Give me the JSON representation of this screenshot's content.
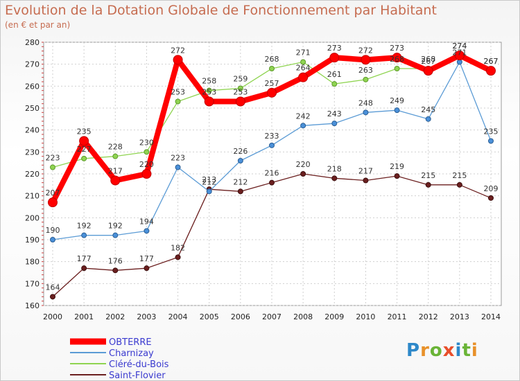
{
  "title": "Evolution de la Dotation Globale de Fonctionnement par Habitant",
  "subtitle": "(en € et par an)",
  "logo": {
    "text": "Proxiti",
    "colors": [
      "#2e88c9",
      "#e8912a",
      "#6ab437",
      "#e84e2a",
      "#2e88c9",
      "#6ab437",
      "#e8912a"
    ]
  },
  "chart_data": {
    "type": "line",
    "x": [
      "2000",
      "2001",
      "2002",
      "2003",
      "2004",
      "2005",
      "2006",
      "2007",
      "2008",
      "2009",
      "2010",
      "2011",
      "2012",
      "2013",
      "2014"
    ],
    "ylim": [
      160,
      280
    ],
    "yticks": [
      "160",
      "170",
      "180",
      "190",
      "200",
      "210",
      "220",
      "230",
      "240",
      "250",
      "260",
      "270",
      "280"
    ],
    "grid": true,
    "legend_position": "bottom-left",
    "series": [
      {
        "name": "OBTERRE",
        "color": "#ff0000",
        "values": [
          207,
          235,
          217,
          220,
          272,
          253,
          253,
          257,
          264,
          273,
          272,
          273,
          267,
          274,
          267
        ],
        "labels": [
          "207",
          "235",
          "217",
          "220",
          "272",
          "253",
          "253",
          "257",
          "264",
          "273",
          "272",
          "273",
          "267",
          "274",
          "267"
        ]
      },
      {
        "name": "Charnizay",
        "color": "#5b9bd5",
        "values": [
          190,
          192,
          192,
          194,
          223,
          212,
          226,
          233,
          242,
          243,
          248,
          249,
          245,
          271,
          235
        ],
        "labels": [
          "190",
          "192",
          "192",
          "194",
          "223",
          "212",
          "226",
          "233",
          "242",
          "243",
          "248",
          "249",
          "245",
          "271",
          "235"
        ]
      },
      {
        "name": "Cléré-du-Bois",
        "color": "#8fd451",
        "values": [
          223,
          227,
          228,
          230,
          253,
          258,
          259,
          268,
          271,
          261,
          263,
          268,
          268,
          274,
          267
        ],
        "labels": [
          "223",
          "227",
          "228",
          "230",
          "253",
          "258",
          "259",
          "268",
          "271",
          "261",
          "263",
          "268",
          "268",
          "274",
          "267"
        ]
      },
      {
        "name": "Saint-Flovier",
        "color": "#6b1f1f",
        "values": [
          164,
          177,
          176,
          177,
          182,
          213,
          212,
          216,
          220,
          218,
          217,
          219,
          215,
          215,
          209
        ],
        "labels": [
          "164",
          "177",
          "176",
          "177",
          "182",
          "213",
          "212",
          "216",
          "220",
          "218",
          "217",
          "219",
          "215",
          "215",
          "209"
        ]
      }
    ]
  }
}
